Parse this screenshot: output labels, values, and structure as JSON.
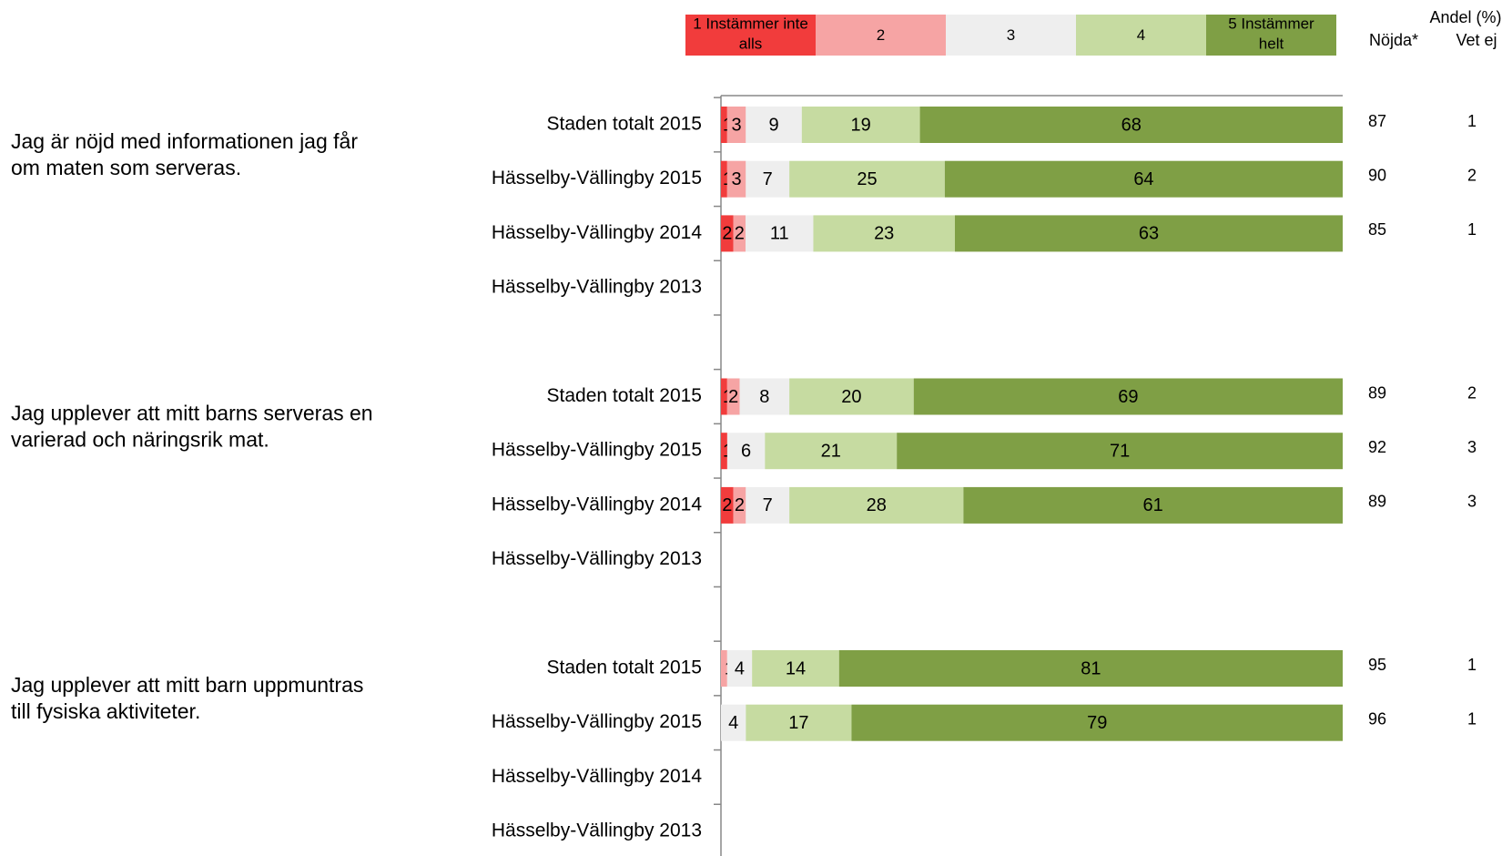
{
  "chart_data": {
    "type": "bar",
    "stacked": "horizontal-100",
    "legend": {
      "placement": "top",
      "entries": [
        {
          "label": [
            "1 Instämmer inte",
            "alls"
          ],
          "color": "#f13c3c"
        },
        {
          "label": [
            "2"
          ],
          "color": "#f6a4a4"
        },
        {
          "label": [
            "3"
          ],
          "color": "#eeeeee"
        },
        {
          "label": [
            "4"
          ],
          "color": "#c6dba1"
        },
        {
          "label": [
            "5  Instämmer",
            "helt"
          ],
          "color": "#7f9f45"
        }
      ]
    },
    "side_header": {
      "title": "Andel (%)",
      "col1": "Nöjda*",
      "col2": "Vet ej"
    },
    "xlim": [
      0,
      100
    ],
    "groups": [
      {
        "question": [
          "Jag är nöjd med informationen jag får",
          "om maten som serveras."
        ],
        "rows": [
          {
            "label": "Staden totalt 2015",
            "values": [
              1,
              3,
              9,
              19,
              68
            ],
            "labels": [
              "1",
              "3",
              "9",
              "19",
              "68"
            ],
            "nojda": "87",
            "vet_ej": "1"
          },
          {
            "label": "Hässelby-Vällingby 2015",
            "values": [
              1,
              3,
              7,
              25,
              64
            ],
            "labels": [
              "1",
              "3",
              "7",
              "25",
              "64"
            ],
            "nojda": "90",
            "vet_ej": "2"
          },
          {
            "label": "Hässelby-Vällingby 2014",
            "values": [
              2,
              2,
              11,
              23,
              63
            ],
            "labels": [
              "2",
              "2",
              "11",
              "23",
              "63"
            ],
            "nojda": "85",
            "vet_ej": "1"
          },
          {
            "label": "Hässelby-Vällingby 2013",
            "values": null,
            "labels": null,
            "nojda": "",
            "vet_ej": ""
          }
        ]
      },
      {
        "question": [
          "Jag upplever att mitt barns serveras en",
          "varierad och näringsrik mat."
        ],
        "rows": [
          {
            "label": "Staden totalt 2015",
            "values": [
              1,
              2,
              8,
              20,
              69
            ],
            "labels": [
              "1",
              "2",
              "8",
              "20",
              "69"
            ],
            "nojda": "89",
            "vet_ej": "2"
          },
          {
            "label": "Hässelby-Vällingby 2015",
            "values": [
              1,
              0,
              6,
              21,
              71
            ],
            "labels": [
              "1",
              "",
              "6",
              "21",
              "71"
            ],
            "nojda": "92",
            "vet_ej": "3"
          },
          {
            "label": "Hässelby-Vällingby 2014",
            "values": [
              2,
              2,
              7,
              28,
              61
            ],
            "labels": [
              "2",
              "2",
              "7",
              "28",
              "61"
            ],
            "nojda": "89",
            "vet_ej": "3"
          },
          {
            "label": "Hässelby-Vällingby 2013",
            "values": null,
            "labels": null,
            "nojda": "",
            "vet_ej": ""
          }
        ]
      },
      {
        "question": [
          "Jag upplever att mitt barn uppmuntras",
          "till fysiska aktiviteter."
        ],
        "rows": [
          {
            "label": "Staden totalt 2015",
            "values": [
              0,
              1,
              4,
              14,
              81
            ],
            "labels": [
              "",
              "1",
              "4",
              "14",
              "81"
            ],
            "nojda": "95",
            "vet_ej": "1"
          },
          {
            "label": "Hässelby-Vällingby 2015",
            "values": [
              0,
              0,
              4,
              17,
              79
            ],
            "labels": [
              "",
              "",
              "4",
              "17",
              "79"
            ],
            "nojda": "96",
            "vet_ej": "1"
          },
          {
            "label": "Hässelby-Vällingby 2014",
            "values": null,
            "labels": null,
            "nojda": "",
            "vet_ej": ""
          },
          {
            "label": "Hässelby-Vällingby 2013",
            "values": null,
            "labels": null,
            "nojda": "",
            "vet_ej": ""
          }
        ]
      }
    ]
  }
}
